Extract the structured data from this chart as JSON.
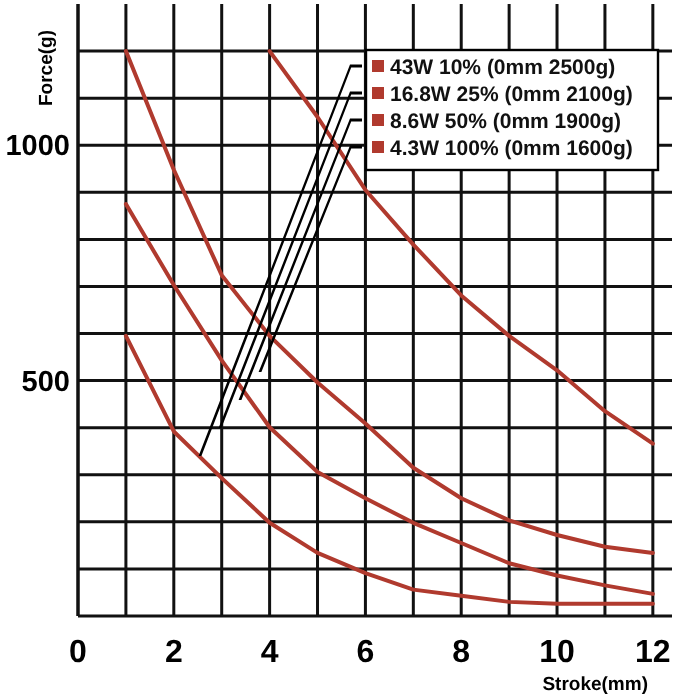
{
  "chart_data": {
    "type": "line",
    "xlabel": "Stroke(mm)",
    "ylabel": "Force(g)",
    "x": [
      1,
      2,
      3,
      4,
      5,
      6,
      7,
      8,
      9,
      10,
      11,
      12
    ],
    "series": [
      {
        "name": "43W 10% (0mm 2500g)",
        "color": "#b03a2e",
        "x": [
          4,
          5,
          6,
          7,
          8,
          9,
          10,
          11,
          12
        ],
        "values": [
          1200,
          1060,
          905,
          789,
          681,
          595,
          522,
          435,
          366
        ]
      },
      {
        "name": "16.8W 25% (0mm 2100g)",
        "color": "#b03a2e",
        "values": [
          1200,
          948,
          724,
          595,
          496,
          409,
          315,
          250,
          203,
          172,
          147,
          134
        ]
      },
      {
        "name": "8.6W 50% (0mm 1900g)",
        "color": "#b03a2e",
        "values": [
          875,
          703,
          543,
          401,
          306,
          250,
          198,
          155,
          112,
          86,
          65,
          47
        ]
      },
      {
        "name": "4.3W 100% (0mm 1600g)",
        "color": "#b03a2e",
        "values": [
          595,
          392,
          293,
          198,
          134,
          91,
          56,
          43,
          30,
          26,
          26,
          26
        ]
      }
    ],
    "xlim": [
      0,
      12.4
    ],
    "ylim": [
      0,
      1300
    ],
    "xticks": [
      0,
      {
        "value": 1,
        "label": null
      },
      2,
      {
        "value": 3,
        "label": null
      },
      4,
      {
        "value": 5,
        "label": null
      },
      6,
      {
        "value": 7,
        "label": null
      },
      8,
      {
        "value": 9,
        "label": null
      },
      10,
      {
        "value": 11,
        "label": null
      },
      12
    ],
    "yticks": [
      {
        "value": 100,
        "label": null
      },
      {
        "value": 200,
        "label": null
      },
      {
        "value": 300,
        "label": null
      },
      {
        "value": 400,
        "label": null
      },
      500,
      {
        "value": 600,
        "label": null
      },
      {
        "value": 700,
        "label": null
      },
      {
        "value": 800,
        "label": null
      },
      {
        "value": 900,
        "label": null
      },
      1000,
      {
        "value": 1100,
        "label": null
      },
      {
        "value": 1200,
        "label": null
      }
    ],
    "grid": true,
    "legend": "top right",
    "marker": "none",
    "line_style": "solid"
  }
}
